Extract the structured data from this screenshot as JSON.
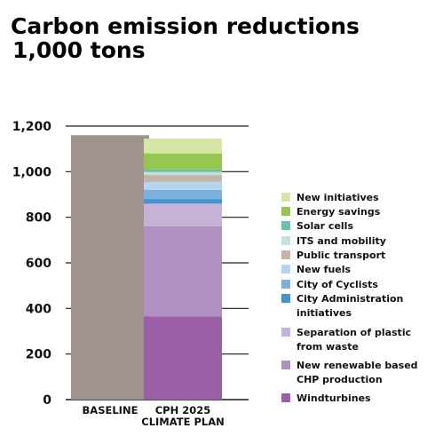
{
  "chart_data": {
    "type": "bar",
    "stacked": true,
    "title": "Carbon emission reductions",
    "subtitle": "1,000 tons",
    "xlabel": "",
    "ylabel": "",
    "ylim": [
      0,
      1200
    ],
    "yticks": [
      "0",
      "200",
      "400",
      "600",
      "800",
      "1,000",
      "1,200"
    ],
    "ytick_values": [
      0,
      200,
      400,
      600,
      800,
      1000,
      1200
    ],
    "grid": true,
    "legend_position": "right",
    "categories": [
      {
        "label_lines": [
          "BASELINE"
        ]
      },
      {
        "label_lines": [
          "CPH 2025",
          "CLIMATE PLAN"
        ]
      }
    ],
    "baseline": {
      "value": 1160,
      "color": "#9f9390"
    },
    "series": [
      {
        "name": "Windturbines",
        "name_lines": [
          "Windturbines"
        ],
        "color": "#9a5fa6",
        "values": [
          0,
          365
        ]
      },
      {
        "name": "New renewable based CHP production",
        "name_lines": [
          "New renewable based",
          "CHP production"
        ],
        "color": "#b08fc3",
        "values": [
          0,
          395
        ]
      },
      {
        "name": "Separation of plastic from waste",
        "name_lines": [
          "Separation of plastic",
          "from waste"
        ],
        "color": "#c8b1d6",
        "values": [
          0,
          100
        ]
      },
      {
        "name": "City Administration initiatives",
        "name_lines": [
          "City Administration",
          "initiatives"
        ],
        "color": "#3d94cf",
        "values": [
          0,
          20
        ]
      },
      {
        "name": "City of Cyclists",
        "name_lines": [
          "City of Cyclists"
        ],
        "color": "#7cb1de",
        "values": [
          0,
          40
        ]
      },
      {
        "name": "New fuels",
        "name_lines": [
          "New fuels"
        ],
        "color": "#b5d4ef",
        "values": [
          0,
          35
        ]
      },
      {
        "name": "Public transport",
        "name_lines": [
          "Public transport"
        ],
        "color": "#c3b4aa",
        "values": [
          0,
          30
        ]
      },
      {
        "name": "ITS and mobility",
        "name_lines": [
          "ITS and mobility"
        ],
        "color": "#bfe3da",
        "values": [
          0,
          15
        ]
      },
      {
        "name": "Solar cells",
        "name_lines": [
          "Solar cells"
        ],
        "color": "#69c3ac",
        "values": [
          0,
          10
        ]
      },
      {
        "name": "Energy savings",
        "name_lines": [
          "Energy savings"
        ],
        "color": "#97c64e",
        "values": [
          0,
          70
        ]
      },
      {
        "name": "New initiatives",
        "name_lines": [
          "New initiatives"
        ],
        "color": "#d6e6a4",
        "values": [
          0,
          65
        ]
      }
    ]
  }
}
